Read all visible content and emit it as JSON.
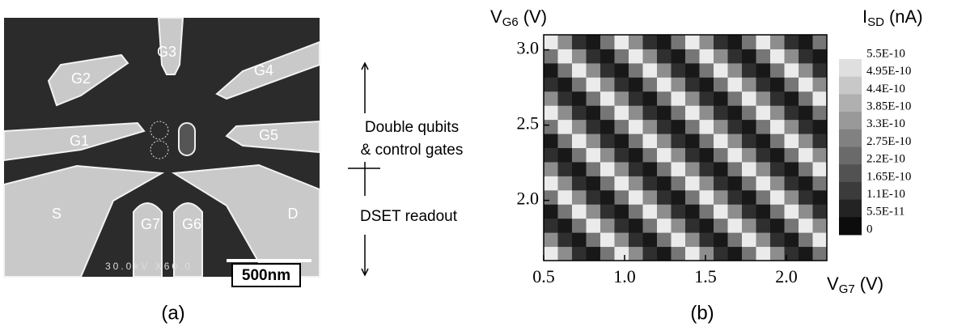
{
  "panel_a": {
    "gates": [
      "G1",
      "G2",
      "G3",
      "G4",
      "G5",
      "G6",
      "G7"
    ],
    "source": "S",
    "drain": "D",
    "scale_bar": "500nm",
    "microscope_info": "30.0kV X60.0",
    "annotation_upper": [
      "Double qubits",
      "& control gates"
    ],
    "annotation_lower": "DSET readout",
    "caption": "(a)"
  },
  "chart_data": {
    "type": "heatmap",
    "caption": "(b)",
    "x_label": {
      "symbol": "V",
      "subscript": "G7",
      "unit": "(V)"
    },
    "y_label": {
      "symbol": "V",
      "subscript": "G6",
      "unit": "(V)"
    },
    "x_bins": [
      0.5,
      0.5875,
      0.675,
      0.7625,
      0.85,
      0.9375,
      1.025,
      1.1125,
      1.2,
      1.2875,
      1.375,
      1.4625,
      1.55,
      1.6375,
      1.725,
      1.8125,
      1.9,
      1.9875,
      2.075,
      2.1625,
      2.25
    ],
    "y_bins": [
      1.6,
      1.69375,
      1.7875,
      1.88125,
      1.975,
      2.06875,
      2.1625,
      2.25625,
      2.35,
      2.44375,
      2.5375,
      2.63125,
      2.725,
      2.81875,
      2.9125,
      3.00625,
      3.1
    ],
    "z": [
      [
        5.5e-10,
        3.3e-10,
        1.1e-10,
        5.5e-11,
        2.75e-10,
        5.5e-10,
        3.3e-10,
        1.1e-10,
        5.5e-11,
        2.75e-10,
        5.5e-10,
        3.3e-10,
        1.1e-10,
        5.5e-11,
        2.75e-10,
        5.5e-10,
        3.3e-10,
        1.1e-10,
        5.5e-11,
        2.75e-10
      ],
      [
        3.3e-10,
        1.1e-10,
        5.5e-11,
        2.75e-10,
        5.5e-10,
        3.3e-10,
        1.1e-10,
        5.5e-11,
        2.75e-10,
        5.5e-10,
        3.3e-10,
        1.1e-10,
        5.5e-11,
        2.75e-10,
        5.5e-10,
        3.3e-10,
        1.1e-10,
        5.5e-11,
        2.75e-10,
        5.5e-10
      ],
      [
        1.1e-10,
        5.5e-11,
        2.75e-10,
        5.5e-10,
        3.3e-10,
        1.1e-10,
        5.5e-11,
        2.75e-10,
        5.5e-10,
        3.3e-10,
        1.1e-10,
        5.5e-11,
        2.75e-10,
        5.5e-10,
        3.3e-10,
        1.1e-10,
        5.5e-11,
        2.75e-10,
        5.5e-10,
        3.3e-10
      ],
      [
        5.5e-11,
        2.75e-10,
        5.5e-10,
        3.3e-10,
        1.1e-10,
        5.5e-11,
        2.75e-10,
        5.5e-10,
        3.3e-10,
        1.1e-10,
        5.5e-11,
        2.75e-10,
        5.5e-10,
        3.3e-10,
        1.1e-10,
        5.5e-11,
        2.75e-10,
        5.5e-10,
        3.3e-10,
        1.1e-10
      ],
      [
        2.75e-10,
        5.5e-10,
        3.3e-10,
        1.1e-10,
        5.5e-11,
        2.75e-10,
        5.5e-10,
        3.3e-10,
        1.1e-10,
        5.5e-11,
        2.75e-10,
        5.5e-10,
        3.3e-10,
        1.1e-10,
        5.5e-11,
        2.75e-10,
        5.5e-10,
        3.3e-10,
        1.1e-10,
        5.5e-11
      ],
      [
        5.5e-10,
        3.3e-10,
        1.1e-10,
        5.5e-11,
        2.75e-10,
        5.5e-10,
        3.3e-10,
        1.1e-10,
        5.5e-11,
        2.75e-10,
        5.5e-10,
        3.3e-10,
        1.1e-10,
        5.5e-11,
        2.75e-10,
        5.5e-10,
        3.3e-10,
        1.1e-10,
        5.5e-11,
        2.75e-10
      ],
      [
        3.3e-10,
        1.1e-10,
        5.5e-11,
        2.75e-10,
        5.5e-10,
        3.3e-10,
        1.1e-10,
        5.5e-11,
        2.75e-10,
        5.5e-10,
        3.3e-10,
        1.1e-10,
        5.5e-11,
        2.75e-10,
        5.5e-10,
        3.3e-10,
        1.1e-10,
        5.5e-11,
        2.75e-10,
        5.5e-10
      ],
      [
        1.1e-10,
        5.5e-11,
        2.75e-10,
        5.5e-10,
        3.3e-10,
        1.1e-10,
        5.5e-11,
        2.75e-10,
        5.5e-10,
        3.3e-10,
        1.1e-10,
        5.5e-11,
        2.75e-10,
        5.5e-10,
        3.3e-10,
        1.1e-10,
        5.5e-11,
        2.75e-10,
        5.5e-10,
        3.3e-10
      ],
      [
        5.5e-11,
        2.75e-10,
        5.5e-10,
        3.3e-10,
        1.1e-10,
        5.5e-11,
        2.75e-10,
        5.5e-10,
        3.3e-10,
        1.1e-10,
        5.5e-11,
        2.75e-10,
        5.5e-10,
        3.3e-10,
        1.1e-10,
        5.5e-11,
        2.75e-10,
        5.5e-10,
        3.3e-10,
        1.1e-10
      ],
      [
        2.75e-10,
        5.5e-10,
        3.3e-10,
        1.1e-10,
        5.5e-11,
        2.75e-10,
        5.5e-10,
        3.3e-10,
        1.1e-10,
        5.5e-11,
        2.75e-10,
        5.5e-10,
        3.3e-10,
        1.1e-10,
        5.5e-11,
        2.75e-10,
        5.5e-10,
        3.3e-10,
        1.1e-10,
        5.5e-11
      ],
      [
        5.5e-10,
        3.3e-10,
        1.1e-10,
        5.5e-11,
        2.75e-10,
        5.5e-10,
        3.3e-10,
        1.1e-10,
        5.5e-11,
        2.75e-10,
        5.5e-10,
        3.3e-10,
        1.1e-10,
        5.5e-11,
        2.75e-10,
        5.5e-10,
        3.3e-10,
        1.1e-10,
        5.5e-11,
        2.75e-10
      ],
      [
        3.3e-10,
        1.1e-10,
        5.5e-11,
        2.75e-10,
        5.5e-10,
        3.3e-10,
        1.1e-10,
        5.5e-11,
        2.75e-10,
        5.5e-10,
        3.3e-10,
        1.1e-10,
        5.5e-11,
        2.75e-10,
        5.5e-10,
        3.3e-10,
        1.1e-10,
        5.5e-11,
        2.75e-10,
        5.5e-10
      ],
      [
        1.1e-10,
        5.5e-11,
        2.75e-10,
        5.5e-10,
        3.3e-10,
        1.1e-10,
        5.5e-11,
        2.75e-10,
        5.5e-10,
        3.3e-10,
        1.1e-10,
        5.5e-11,
        2.75e-10,
        5.5e-10,
        3.3e-10,
        1.1e-10,
        5.5e-11,
        2.75e-10,
        5.5e-10,
        3.3e-10
      ],
      [
        5.5e-11,
        2.75e-10,
        5.5e-10,
        3.3e-10,
        1.1e-10,
        5.5e-11,
        2.75e-10,
        5.5e-10,
        3.3e-10,
        1.1e-10,
        5.5e-11,
        2.75e-10,
        5.5e-10,
        3.3e-10,
        1.1e-10,
        5.5e-11,
        2.75e-10,
        5.5e-10,
        3.3e-10,
        1.1e-10
      ],
      [
        2.75e-10,
        5.5e-10,
        3.3e-10,
        1.1e-10,
        5.5e-11,
        2.75e-10,
        5.5e-10,
        3.3e-10,
        1.1e-10,
        5.5e-11,
        2.75e-10,
        5.5e-10,
        3.3e-10,
        1.1e-10,
        5.5e-11,
        2.75e-10,
        5.5e-10,
        3.3e-10,
        1.1e-10,
        5.5e-11
      ],
      [
        5.5e-10,
        3.3e-10,
        1.1e-10,
        5.5e-11,
        2.75e-10,
        5.5e-10,
        3.3e-10,
        1.1e-10,
        5.5e-11,
        2.75e-10,
        5.5e-10,
        3.3e-10,
        1.1e-10,
        5.5e-11,
        2.75e-10,
        5.5e-10,
        3.3e-10,
        1.1e-10,
        5.5e-11,
        2.75e-10
      ]
    ],
    "xlim": [
      0.5,
      2.25
    ],
    "ylim": [
      1.6,
      3.1
    ],
    "xticks": [
      0.5,
      {
        "value": 1,
        "label": "1.0"
      },
      1.5,
      {
        "value": 2,
        "label": "2.0"
      }
    ],
    "yticks": [
      {
        "value": 2,
        "label": "2.0"
      },
      2.5,
      {
        "value": 3,
        "label": "3.0"
      }
    ],
    "colorbar": {
      "label": {
        "symbol": "I",
        "subscript": "SD",
        "unit": "(nA)"
      },
      "zlim": [
        0,
        5.5e-10
      ],
      "ticks": [
        {
          "value": 5.5e-10,
          "label": "5.5E-10"
        },
        {
          "value": 4.95e-10,
          "label": "4.95E-10"
        },
        {
          "value": 4.4e-10,
          "label": "4.4E-10"
        },
        {
          "value": 3.85e-10,
          "label": "3.85E-10"
        },
        {
          "value": 3.3e-10,
          "label": "3.3E-10"
        },
        {
          "value": 2.75e-10,
          "label": "2.75E-10"
        },
        {
          "value": 2.2e-10,
          "label": "2.2E-10"
        },
        {
          "value": 1.65e-10,
          "label": "1.65E-10"
        },
        {
          "value": 1.1e-10,
          "label": "1.1E-10"
        },
        {
          "value": 5.5e-11,
          "label": "5.5E-11"
        },
        0
      ]
    }
  }
}
